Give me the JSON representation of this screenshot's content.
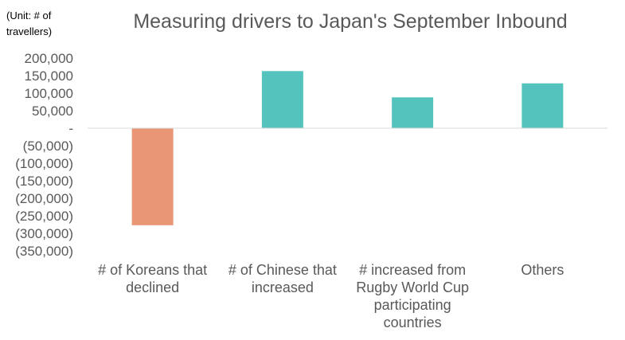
{
  "chart_data": {
    "type": "bar",
    "title": "Measuring drivers to Japan's September Inbound",
    "unit_note": "(Unit: # of travellers)",
    "categories": [
      "# of Koreans that declined",
      "# of Chinese that increased",
      "# increased from Rugby World Cup participating countries",
      "Others"
    ],
    "values": [
      -277000,
      163000,
      88000,
      128000
    ],
    "bar_colors": [
      "#e99676",
      "#55c3bd",
      "#55c3bd",
      "#55c3bd"
    ],
    "ylim": [
      -350000,
      200000
    ],
    "yticks": [
      200000,
      150000,
      100000,
      50000,
      0,
      -50000,
      -100000,
      -150000,
      -200000,
      -250000,
      -300000,
      -350000
    ],
    "ytick_labels": [
      "200,000",
      "150,000",
      "100,000",
      "50,000",
      "-",
      "(50,000)",
      "(100,000)",
      "(150,000)",
      "(200,000)",
      "(250,000)",
      "(300,000)",
      "(350,000)"
    ],
    "grid": false,
    "legend": false
  }
}
